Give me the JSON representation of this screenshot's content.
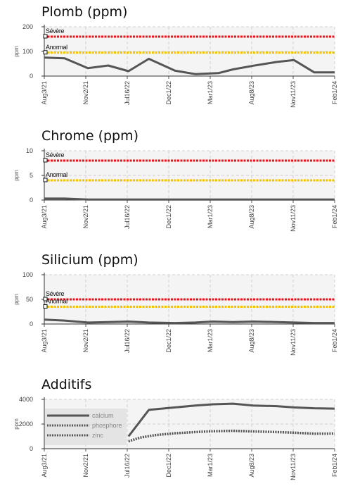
{
  "charts": [
    {
      "id": "plomb",
      "title": "Plomb (ppm)",
      "top": 6,
      "chart_data": {
        "type": "line",
        "title": "Plomb (ppm)",
        "ylabel": "ppm",
        "xlabel": "",
        "ylim": [
          0,
          200
        ],
        "yticks": [
          0,
          100,
          200
        ],
        "x_tick_labels": [
          "Aug3/21",
          "Nov2/21",
          "Jul16/22",
          "Dec1/22",
          "Mar1/23",
          "Aug8/23",
          "Nov11/23",
          "Feb1/24"
        ],
        "grid": true,
        "thresholds": [
          {
            "label": "Sévère",
            "value": 160,
            "color": "#e8141c"
          },
          {
            "label": "Anormal",
            "value": 95,
            "color": "#f2c200"
          }
        ],
        "series": [
          {
            "name": "",
            "color": "#555555",
            "style": "solid",
            "points": [
              [
                0,
                75
              ],
              [
                0.07,
                72
              ],
              [
                0.15,
                32
              ],
              [
                0.22,
                43
              ],
              [
                0.29,
                20
              ],
              [
                0.36,
                70
              ],
              [
                0.45,
                22
              ],
              [
                0.52,
                8
              ],
              [
                0.6,
                12
              ],
              [
                0.65,
                27
              ],
              [
                0.72,
                42
              ],
              [
                0.8,
                57
              ],
              [
                0.86,
                65
              ],
              [
                0.93,
                15
              ],
              [
                1,
                15
              ]
            ]
          }
        ]
      }
    },
    {
      "id": "chrome",
      "title": "Chrome (ppm)",
      "top": 182,
      "chart_data": {
        "type": "line",
        "title": "Chrome (ppm)",
        "ylabel": "ppm",
        "xlabel": "",
        "ylim": [
          0,
          10
        ],
        "yticks": [
          0,
          5,
          10
        ],
        "x_tick_labels": [
          "Aug3/21",
          "Nov2/21",
          "Jul16/22",
          "Dec1/22",
          "Mar1/23",
          "Aug8/23",
          "Nov11/23",
          "Feb1/24"
        ],
        "grid": true,
        "thresholds": [
          {
            "label": "Sévère",
            "value": 8,
            "color": "#e8141c"
          },
          {
            "label": "Anormal",
            "value": 4,
            "color": "#f2c200"
          }
        ],
        "series": [
          {
            "name": "",
            "color": "#555555",
            "style": "solid",
            "points": [
              [
                0,
                0.3
              ],
              [
                0.07,
                0.3
              ],
              [
                0.15,
                0.1
              ],
              [
                0.29,
                0.1
              ],
              [
                0.45,
                0.1
              ],
              [
                0.6,
                0.1
              ],
              [
                0.72,
                0.1
              ],
              [
                0.86,
                0.1
              ],
              [
                1,
                0.1
              ]
            ]
          }
        ]
      }
    },
    {
      "id": "silicium",
      "title": "Silicium (ppm)",
      "top": 358,
      "chart_data": {
        "type": "line",
        "title": "Silicium (ppm)",
        "ylabel": "ppm",
        "xlabel": "",
        "ylim": [
          0,
          100
        ],
        "yticks": [
          0,
          50,
          100
        ],
        "x_tick_labels": [
          "Aug3/21",
          "Nov2/21",
          "Jul16/22",
          "Dec1/22",
          "Mar1/23",
          "Aug8/23",
          "Nov11/23",
          "Feb1/24"
        ],
        "grid": true,
        "thresholds": [
          {
            "label": "Sévère",
            "value": 50,
            "color": "#e8141c"
          },
          {
            "label": "Anormal",
            "value": 35,
            "color": "#f2c200"
          }
        ],
        "series": [
          {
            "name": "",
            "color": "#555555",
            "style": "solid",
            "points": [
              [
                0,
                9
              ],
              [
                0.07,
                7
              ],
              [
                0.15,
                3
              ],
              [
                0.22,
                4
              ],
              [
                0.29,
                5
              ],
              [
                0.36,
                3
              ],
              [
                0.45,
                2
              ],
              [
                0.52,
                3
              ],
              [
                0.58,
                5
              ],
              [
                0.65,
                4
              ],
              [
                0.72,
                5
              ],
              [
                0.8,
                4
              ],
              [
                0.86,
                3
              ],
              [
                0.93,
                2
              ],
              [
                1,
                2
              ]
            ]
          }
        ]
      }
    },
    {
      "id": "additifs",
      "title": "Additifs",
      "top": 535,
      "chart_data": {
        "type": "line",
        "title": "Additifs",
        "ylabel": "ppm",
        "xlabel": "",
        "ylim": [
          0,
          4000
        ],
        "yticks": [
          0,
          2000,
          4000
        ],
        "x_tick_labels": [
          "Aug3/21",
          "Nov2/21",
          "Jul16/22",
          "Dec1/22",
          "Mar1/23",
          "Aug8/23",
          "Nov11/23",
          "Feb1/24"
        ],
        "grid": true,
        "legend": "top-left",
        "thresholds": [],
        "series": [
          {
            "name": "calcium",
            "color": "#555555",
            "style": "solid",
            "points": [
              [
                0.29,
                1000
              ],
              [
                0.36,
                3150
              ],
              [
                0.45,
                3350
              ],
              [
                0.52,
                3500
              ],
              [
                0.58,
                3600
              ],
              [
                0.65,
                3650
              ],
              [
                0.72,
                3500
              ],
              [
                0.8,
                3450
              ],
              [
                0.86,
                3350
              ],
              [
                0.93,
                3280
              ],
              [
                1,
                3250
              ]
            ]
          },
          {
            "name": "phosphore",
            "color": "#555555",
            "style": "dotted",
            "points": [
              [
                0.29,
                600
              ],
              [
                0.33,
                900
              ],
              [
                0.38,
                1100
              ],
              [
                0.45,
                1250
              ],
              [
                0.52,
                1350
              ],
              [
                0.58,
                1420
              ],
              [
                0.65,
                1450
              ],
              [
                0.72,
                1400
              ],
              [
                0.8,
                1350
              ],
              [
                0.86,
                1300
              ],
              [
                0.93,
                1220
              ],
              [
                1,
                1230
              ]
            ]
          },
          {
            "name": "zinc",
            "color": "#555555",
            "style": "dotted",
            "points": [
              [
                0.29,
                550
              ]
            ]
          }
        ]
      }
    }
  ]
}
